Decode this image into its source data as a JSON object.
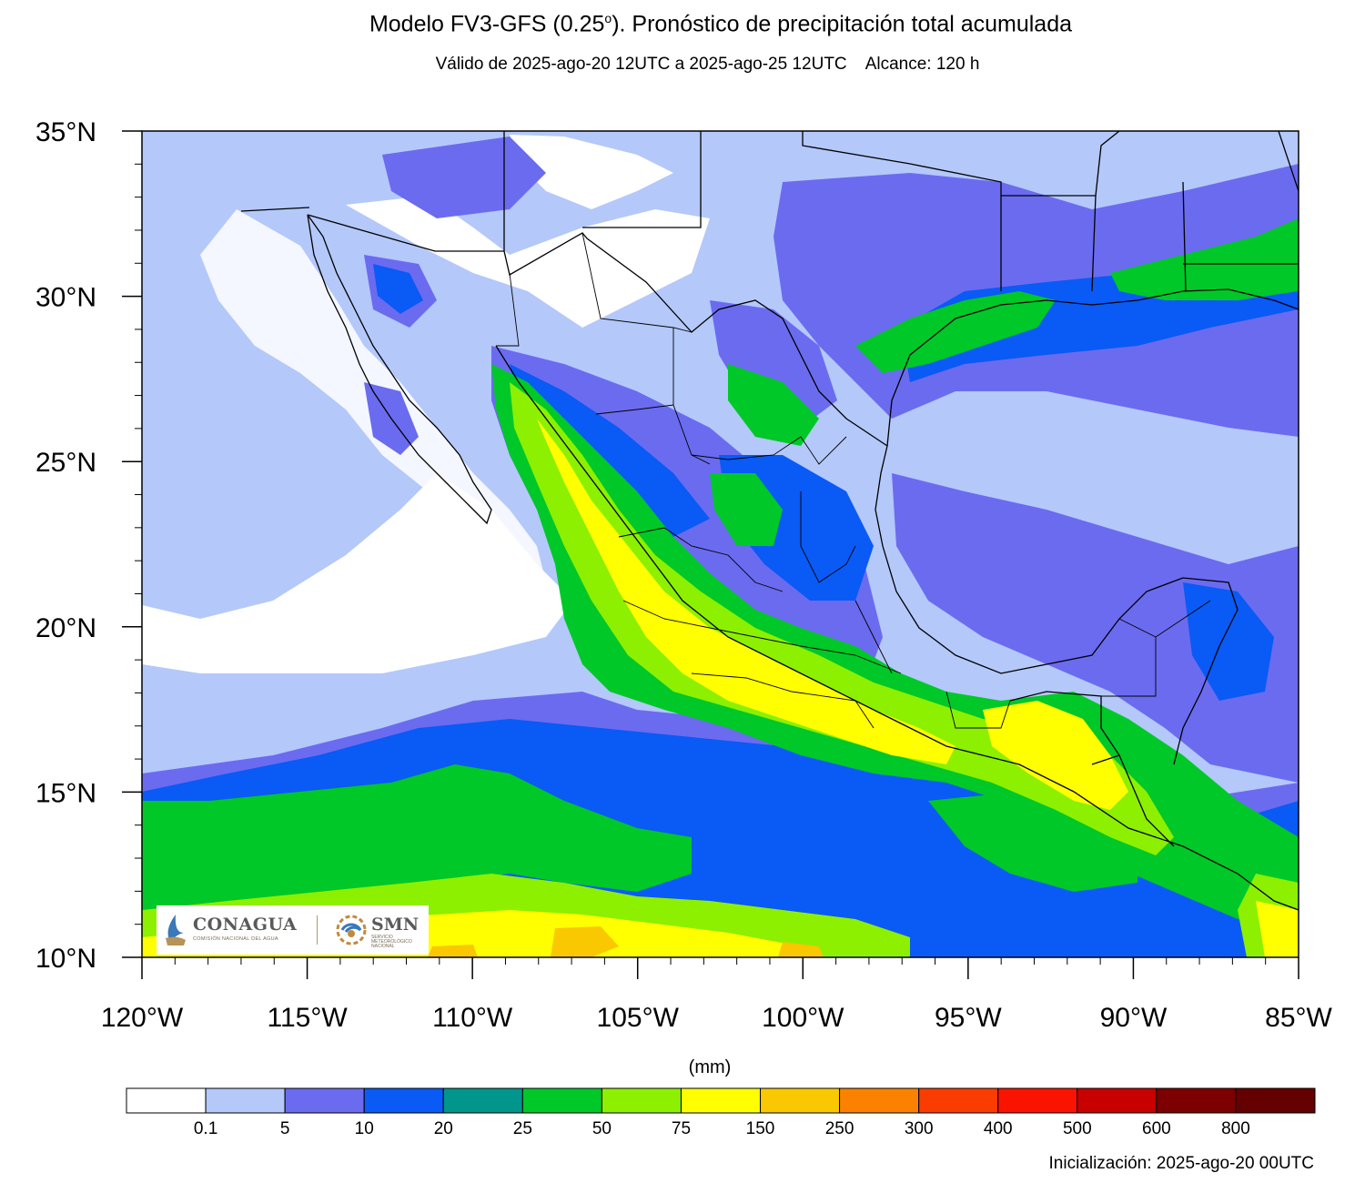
{
  "title": {
    "prefix": "Modelo FV3-GFS (0.25",
    "degree": "o",
    "suffix": "). Pronóstico de precipitación total acumulada"
  },
  "subtitle": "Válido de 2025-ago-20 12UTC a 2025-ago-25 12UTC    Alcance: 120 h",
  "map": {
    "lon_range": [
      -120,
      -85
    ],
    "lat_range": [
      10,
      35
    ],
    "lat_ticks": [
      "35°N",
      "30°N",
      "25°N",
      "20°N",
      "15°N",
      "10°N"
    ],
    "lon_ticks": [
      "120°W",
      "115°W",
      "110°W",
      "105°W",
      "100°W",
      "95°W",
      "90°W",
      "85°W"
    ]
  },
  "colorbar": {
    "units": "(mm)",
    "labels": [
      "0.1",
      "5",
      "10",
      "20",
      "25",
      "50",
      "75",
      "150",
      "250",
      "300",
      "400",
      "500",
      "600",
      "800"
    ],
    "colors": [
      "#ffffff",
      "#b4c8fa",
      "#6b6bf0",
      "#0a5af5",
      "#00968c",
      "#00c828",
      "#8cf000",
      "#ffff00",
      "#fac800",
      "#fa8200",
      "#fa3c00",
      "#fa1400",
      "#c80000",
      "#7d0000",
      "#640000"
    ]
  },
  "logos": {
    "conagua_name": "CONAGUA",
    "conagua_sub": "COMISIÓN NACIONAL DEL AGUA",
    "smn_name": "SMN",
    "smn_sub": "SERVICIO METEOROLÓGICO NACIONAL"
  },
  "footer": "Inicialización: 2025-ago-20 00UTC"
}
